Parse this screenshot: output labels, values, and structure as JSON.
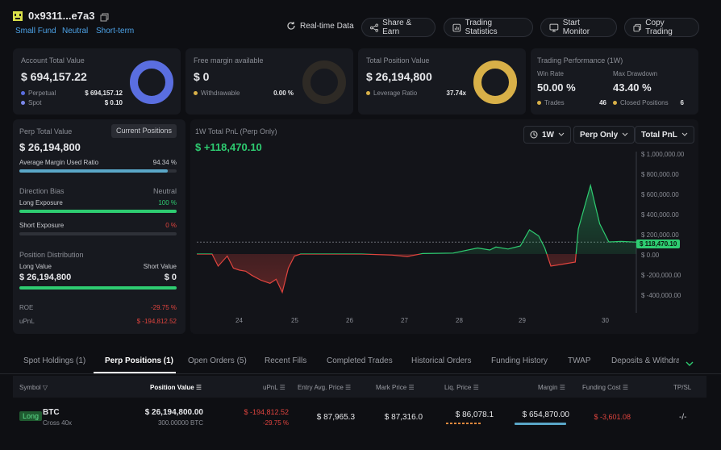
{
  "header": {
    "address": "0x9311...e7a3",
    "tags": [
      "Small Fund",
      "Neutral",
      "Short-term"
    ],
    "buttons": {
      "realtime": "Real-time Data",
      "share": "Share & Earn",
      "stats": "Trading Statistics",
      "monitor": "Start Monitor",
      "copy": "Copy Trading"
    }
  },
  "account": {
    "label": "Account Total Value",
    "value": "$ 694,157.22",
    "perp_label": "Perpetual",
    "perp_value": "$ 694,157.12",
    "spot_label": "Spot",
    "spot_value": "$ 0.10",
    "donut_perp_pct": 100
  },
  "margin": {
    "label": "Free margin available",
    "value": "$ 0",
    "withdraw_label": "Withdrawable",
    "withdraw_value": "0.00 %",
    "donut_pct": 0
  },
  "position": {
    "label": "Total Position Value",
    "value": "$ 26,194,800",
    "leverage_label": "Leverage Ratio",
    "leverage_value": "37.74x",
    "donut_pct": 100
  },
  "performance": {
    "label": "Trading Performance (1W)",
    "win_label": "Win Rate",
    "win_value": "50.00 %",
    "dd_label": "Max Drawdown",
    "dd_value": "43.40 %",
    "trades_label": "Trades",
    "trades_value": "46",
    "closed_label": "Closed Positions",
    "closed_value": "6"
  },
  "perp": {
    "label": "Perp Total Value",
    "current_btn": "Current Positions",
    "value": "$ 26,194,800",
    "avg_label": "Average Margin Used Ratio",
    "avg_value": "94.34 %",
    "avg_pct": 94.34,
    "bias_label": "Direction Bias",
    "bias_value": "Neutral",
    "long_exp_label": "Long Exposure",
    "long_exp_value": "100 %",
    "long_exp_pct": 100,
    "short_exp_label": "Short Exposure",
    "short_exp_value": "0 %",
    "short_exp_pct": 0,
    "dist_label": "Position Distribution",
    "long_val_label": "Long Value",
    "short_val_label": "Short Value",
    "long_val": "$ 26,194,800",
    "short_val": "$ 0",
    "dist_long_pct": 100,
    "roe_label": "ROE",
    "roe_value": "-29.75 %",
    "upnl_label": "uPnL",
    "upnl_value": "$ -194,812.52"
  },
  "pnl_chart": {
    "title": "1W Total PnL (Perp Only)",
    "value": "$ +118,470.10",
    "dd_period": "1W",
    "dd_scope": "Perp Only",
    "dd_metric": "Total PnL",
    "current_label": "$ 118,470.10"
  },
  "chart_data": {
    "type": "line",
    "title": "1W Total PnL (Perp Only)",
    "x_ticks": [
      "24",
      "25",
      "26",
      "27",
      "28",
      "29",
      "30"
    ],
    "y_ticks": [
      "$ 1,000,000.00",
      "$ 800,000.00",
      "$ 600,000.00",
      "$ 400,000.00",
      "$ 200,000.00",
      "$ 0.00",
      "$ -200,000.00",
      "$ -400,000.00"
    ],
    "ylim": [
      -450000,
      1000000
    ],
    "xlim": [
      23.3,
      30.5
    ],
    "series": [
      {
        "name": "Total PnL",
        "points": [
          [
            23.3,
            0
          ],
          [
            23.55,
            0
          ],
          [
            23.65,
            -120000
          ],
          [
            23.8,
            -20000
          ],
          [
            23.9,
            -140000
          ],
          [
            24.0,
            -160000
          ],
          [
            24.1,
            -170000
          ],
          [
            24.2,
            -210000
          ],
          [
            24.35,
            -260000
          ],
          [
            24.5,
            -290000
          ],
          [
            24.6,
            -250000
          ],
          [
            24.7,
            -380000
          ],
          [
            24.8,
            -140000
          ],
          [
            24.9,
            -20000
          ],
          [
            25.0,
            0
          ],
          [
            25.5,
            0
          ],
          [
            26.0,
            0
          ],
          [
            26.5,
            -10000
          ],
          [
            26.75,
            -25000
          ],
          [
            27.0,
            5000
          ],
          [
            27.5,
            10000
          ],
          [
            27.9,
            60000
          ],
          [
            28.1,
            40000
          ],
          [
            28.2,
            70000
          ],
          [
            28.4,
            50000
          ],
          [
            28.6,
            80000
          ],
          [
            28.75,
            240000
          ],
          [
            28.9,
            180000
          ],
          [
            29.0,
            60000
          ],
          [
            29.1,
            -120000
          ],
          [
            29.3,
            -100000
          ],
          [
            29.5,
            -80000
          ],
          [
            29.55,
            250000
          ],
          [
            29.75,
            680000
          ],
          [
            29.9,
            300000
          ],
          [
            30.05,
            120000
          ],
          [
            30.25,
            125000
          ],
          [
            30.5,
            118470.1
          ]
        ]
      }
    ]
  },
  "tabs": [
    "Spot Holdings (1)",
    "Perp Positions (1)",
    "Open Orders (5)",
    "Recent Fills",
    "Completed Trades",
    "Historical Orders",
    "Funding History",
    "TWAP",
    "Deposits & Withdraw"
  ],
  "table": {
    "headers": [
      "Symbol",
      "Position Value",
      "uPnL",
      "Entry Avg. Price",
      "Mark Price",
      "Liq. Price",
      "Margin",
      "Funding Cost",
      "TP/SL"
    ],
    "row": {
      "side": "Long",
      "symbol": "BTC",
      "sub": "Cross 40x",
      "pos_value": "$ 26,194,800.00",
      "pos_qty": "300.00000 BTC",
      "upnl": "$ -194,812.52",
      "upnl_pct": "-29.75 %",
      "entry": "$ 87,965.3",
      "mark": "$ 87,316.0",
      "liq": "$ 86,078.1",
      "margin": "$ 654,870.00",
      "funding": "$ -3,601.08",
      "tpsl": "-/-"
    }
  },
  "colors": {
    "accent_blue": "#5a6ee0",
    "gold": "#d8b048",
    "green": "#2ecc71",
    "red": "#e0443e"
  }
}
